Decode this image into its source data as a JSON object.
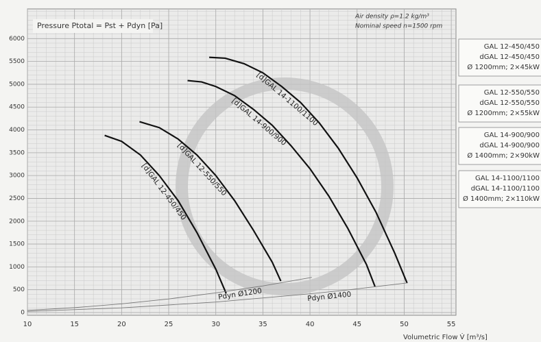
{
  "chart_data": {
    "type": "line",
    "title": "Pressure Ptotal = Pst + Pdyn [Pa]",
    "notes": [
      "Air density ρ=1.2 kg/m³",
      "Nominal speed n=1500 rpm"
    ],
    "xlabel": "Volumetric Flow V̇ [m³/s]",
    "xlim": [
      10,
      55.5
    ],
    "ylim": [
      0,
      6650
    ],
    "xticks": [
      10,
      15,
      20,
      25,
      30,
      35,
      40,
      45,
      50,
      55
    ],
    "yticks": [
      0,
      500,
      1000,
      1500,
      2000,
      2500,
      3000,
      3500,
      4000,
      4500,
      5000,
      5500,
      6000
    ],
    "grid": true,
    "series": [
      {
        "name": "[d]GAL 12-450/450",
        "color": "#111111",
        "x": [
          18.2,
          20,
          22,
          24,
          26,
          28,
          30,
          31.1
        ],
        "values": [
          3880,
          3750,
          3450,
          3000,
          2450,
          1750,
          950,
          420
        ]
      },
      {
        "name": "[d]GAL 12-550/550",
        "color": "#111111",
        "x": [
          21.9,
          24,
          26,
          28,
          30,
          32,
          34,
          36,
          36.9
        ],
        "values": [
          4180,
          4050,
          3800,
          3450,
          3000,
          2450,
          1800,
          1100,
          690
        ]
      },
      {
        "name": "[d]GAL 14-900/900",
        "color": "#111111",
        "x": [
          27,
          28.5,
          30,
          32,
          34,
          36,
          38,
          40,
          42,
          44,
          46,
          46.9
        ],
        "values": [
          5080,
          5050,
          4950,
          4750,
          4450,
          4100,
          3650,
          3150,
          2550,
          1850,
          1050,
          570
        ]
      },
      {
        "name": "[d]GAL 14-1100/1100",
        "color": "#111111",
        "x": [
          29.3,
          31,
          33,
          35,
          37,
          39,
          41,
          43,
          45,
          47,
          49,
          50.3
        ],
        "values": [
          5590,
          5570,
          5450,
          5250,
          4950,
          4600,
          4150,
          3600,
          2950,
          2200,
          1300,
          650
        ]
      }
    ],
    "dynamic_pressure": [
      {
        "name": "Pdyn Ø1200",
        "color": "#777777",
        "x": [
          10,
          15,
          20,
          25,
          30,
          35,
          40.2
        ],
        "values": [
          48,
          107,
          190,
          298,
          430,
          583,
          770
        ]
      },
      {
        "name": "Pdyn Ø1400",
        "color": "#777777",
        "x": [
          10,
          20,
          30,
          40,
          44,
          50.4
        ],
        "values": [
          26,
          102,
          230,
          410,
          495,
          650
        ]
      }
    ],
    "info_boxes": [
      [
        "GAL 12-450/450",
        "dGAL 12-450/450",
        "Ø 1200mm; 2×45kW"
      ],
      [
        "GAL 12-550/550",
        "dGAL 12-550/550",
        "Ø 1200mm; 2×55kW"
      ],
      [
        "GAL 14-900/900",
        "dGAL 14-900/900",
        "Ø 1400mm; 2×90kW"
      ],
      [
        "GAL 14-1100/1100",
        "dGAL 14-1100/1100",
        "Ø 1400mm; 2×110kW"
      ]
    ]
  }
}
